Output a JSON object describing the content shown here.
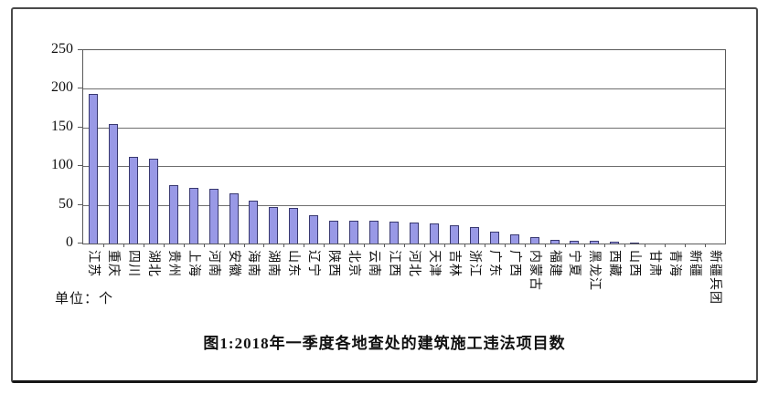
{
  "title": "图1:2018年一季度各地查处的建筑施工违法项目数",
  "unit_label": "单位：个",
  "colors": {
    "bar_fill": "#9999e6",
    "bar_border": "#383870",
    "gridline": "#6e6e6e",
    "axis": "#5a5a5a",
    "text": "#111111"
  },
  "chart_data": {
    "type": "bar",
    "title": "图1:2018年一季度各地查处的建筑施工违法项目数",
    "unit": "单位：个",
    "categories": [
      "江苏",
      "重庆",
      "四川",
      "湖北",
      "贵州",
      "上海",
      "河南",
      "安徽",
      "海南",
      "湖南",
      "山东",
      "辽宁",
      "陕西",
      "北京",
      "云南",
      "江西",
      "河北",
      "天津",
      "吉林",
      "浙江",
      "广东",
      "广西",
      "内蒙古",
      "福建",
      "宁夏",
      "黑龙江",
      "西藏",
      "山西",
      "甘肃",
      "青海",
      "新疆",
      "新疆兵团"
    ],
    "values": [
      193,
      155,
      112,
      110,
      76,
      72,
      71,
      65,
      55,
      47,
      46,
      36,
      29,
      29,
      29,
      28,
      27,
      26,
      23,
      21,
      15,
      12,
      8,
      5,
      4,
      3,
      2,
      1,
      0,
      0,
      0,
      0
    ],
    "xlabel": "",
    "ylabel": "",
    "ylim": [
      0,
      250
    ],
    "yticks": [
      0,
      50,
      100,
      150,
      200,
      250
    ],
    "grid": true,
    "legend_position": "none",
    "bar_orientation": "vertical",
    "xlabel_rotation_deg": 90
  }
}
